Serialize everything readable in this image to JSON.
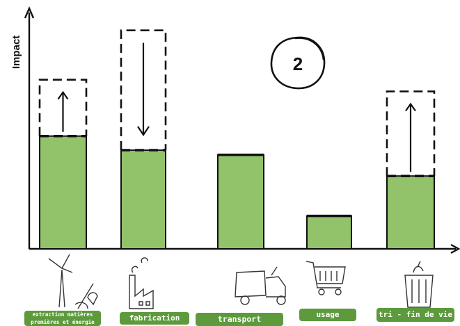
{
  "chart_data": {
    "type": "bar",
    "ylabel": "Impact",
    "badge": "2",
    "categories": [
      "extraction matières premières et énergie",
      "fabrication",
      "transport",
      "usage",
      "tri - fin de vie"
    ],
    "category_lines": [
      [
        "extraction matières",
        "premières et énergie"
      ],
      [
        "fabrication"
      ],
      [
        "transport"
      ],
      [
        "usage"
      ],
      [
        "tri - fin de vie"
      ]
    ],
    "values": [
      48,
      42,
      40,
      14,
      31
    ],
    "variation_targets": [
      72,
      93,
      null,
      null,
      67
    ],
    "variation_direction": [
      "up",
      "down",
      null,
      null,
      "up"
    ],
    "ylim": [
      0,
      100
    ],
    "grid": false,
    "legend": "none",
    "icons": [
      "wind-turbine-shovel-icon",
      "factory-icon",
      "truck-icon",
      "shopping-cart-icon",
      "trash-bin-icon"
    ]
  },
  "colors": {
    "bar_fill": "#92c36a",
    "label_bg": "#5c9a3c",
    "ink": "#111111"
  }
}
